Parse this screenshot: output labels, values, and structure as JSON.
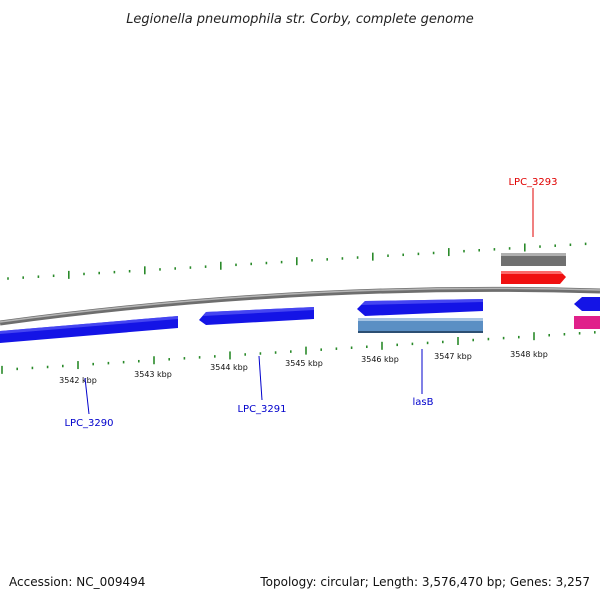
{
  "title": "Legionella pneumophila str. Corby, complete genome",
  "footer": {
    "accession": "Accession: NC_009494",
    "summary": "Topology: circular; Length: 3,576,470 bp; Genes: 3,257"
  },
  "ticks": [
    {
      "label": "3542 kbp"
    },
    {
      "label": "3543 kbp"
    },
    {
      "label": "3544 kbp"
    },
    {
      "label": "3545 kbp"
    },
    {
      "label": "3546 kbp"
    },
    {
      "label": "3547 kbp"
    },
    {
      "label": "3548 kbp"
    }
  ],
  "gene_labels": [
    {
      "name": "LPC_3293",
      "color": "#e00000"
    },
    {
      "name": "LPC_3290",
      "color": "#0000cc"
    },
    {
      "name": "LPC_3291",
      "color": "#0000cc"
    },
    {
      "name": "lasB",
      "color": "#0000cc"
    }
  ],
  "colors": {
    "backbone": "#8a8a8a",
    "gene_blue": "#1414e6",
    "gene_steel": "#5b8fc4",
    "gene_red": "#f01010",
    "gene_gray": "#707070",
    "gene_magenta": "#e0208a",
    "gc_marks": "#2a8a2a"
  }
}
